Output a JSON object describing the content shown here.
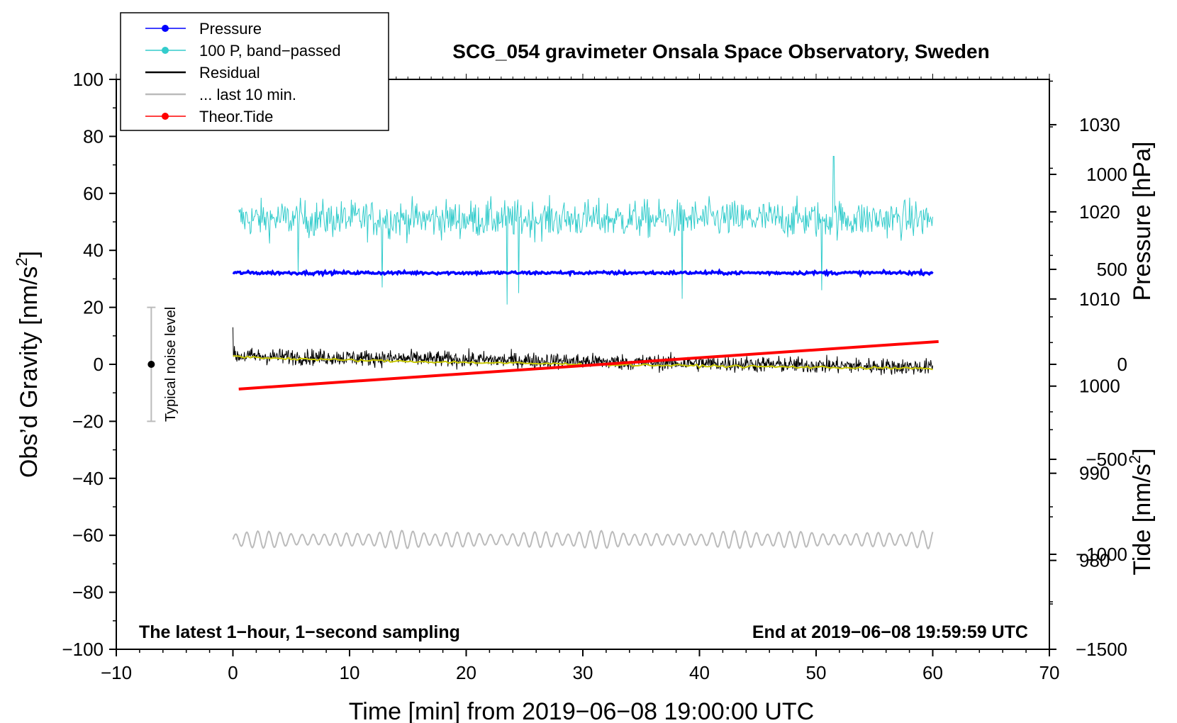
{
  "chart_data": {
    "type": "line",
    "title": "SCG_054 gravimeter Onsala Space Observatory, Sweden",
    "xlabel": "Time [min] from 2019−06−08 19:00:00 UTC",
    "ylabel_left": "Obs’d Gravity [nm/s",
    "ylabel_left_sup": "2",
    "ylabel_left_end": "]",
    "ylabel_right_top": "Pressure [hPa]",
    "ylabel_right_bottom": "Tide [nm/s",
    "ylabel_right_bottom_sup": "2",
    "ylabel_right_bottom_end": "]",
    "xlim": [
      -10,
      70
    ],
    "ylim": [
      -100,
      100
    ],
    "pressure_lim": [
      969.8,
      1035.2
    ],
    "tide_lim": [
      -1500,
      1500
    ],
    "x_ticks": [
      "−10",
      "0",
      "10",
      "20",
      "30",
      "40",
      "50",
      "60",
      "70"
    ],
    "x_tick_values": [
      -10,
      0,
      10,
      20,
      30,
      40,
      50,
      60,
      70
    ],
    "y_ticks": [
      "100",
      "80",
      "60",
      "40",
      "20",
      "0",
      "−20",
      "−40",
      "−60",
      "−80",
      "−100"
    ],
    "y_tick_values": [
      100,
      80,
      60,
      40,
      20,
      0,
      -20,
      -40,
      -60,
      -80,
      -100
    ],
    "pressure_ticks": [
      "1030",
      "1020",
      "1010",
      "1000",
      "990",
      "980"
    ],
    "pressure_tick_values": [
      1030,
      1020,
      1010,
      1000,
      990,
      980
    ],
    "tide_ticks": [
      "1000",
      "500",
      "0",
      "−500",
      "−1000",
      "−1500"
    ],
    "tide_tick_values": [
      1000,
      500,
      0,
      -500,
      -1000,
      -1500
    ],
    "annotation_left": "The latest 1−hour, 1−second sampling",
    "annotation_right": "End at 2019−06−08 19:59:59 UTC",
    "noise_label": "Typical noise level",
    "noise_bar": {
      "x": -7,
      "center": 0,
      "half_range": 20
    },
    "legend": [
      {
        "label": "Pressure",
        "color": "#0000ff",
        "marker": true
      },
      {
        "label": "100 P, band−passed",
        "color": "#33cccc",
        "marker": true
      },
      {
        "label": "Residual",
        "color": "#000000",
        "marker": false
      },
      {
        "label": "... last 10 min.",
        "color": "#bbbbbb",
        "marker": false
      },
      {
        "label": "Theor.Tide",
        "color": "#ff0000",
        "marker": true
      }
    ],
    "series": [
      {
        "name": "Pressure",
        "axis": "pressure",
        "color": "#0000ff",
        "x_range": [
          0,
          60
        ],
        "level": 1013,
        "noise": 0.35
      },
      {
        "name": "100 P, band−passed",
        "axis": "gravity",
        "color": "#33cccc",
        "x_range": [
          0.5,
          60
        ],
        "level": 51,
        "noise": 6.5,
        "spikes": [
          [
            23.5,
            21
          ],
          [
            24.5,
            25
          ],
          [
            38.5,
            23
          ],
          [
            51.5,
            73
          ],
          [
            50.5,
            26
          ],
          [
            12.8,
            27
          ],
          [
            5.6,
            32
          ]
        ]
      },
      {
        "name": "Residual",
        "axis": "gravity",
        "color": "#000000",
        "x_range": [
          0,
          60
        ],
        "start": 3,
        "end": -1,
        "noise": 2.8
      },
      {
        "name": "Residual smoothed",
        "axis": "gravity",
        "color": "#c8c800",
        "x_range": [
          0,
          60
        ],
        "start": 3,
        "end": -1.5
      },
      {
        "name": "... last 10 min.",
        "axis": "gravity",
        "color": "#bbbbbb",
        "x_range": [
          0,
          60
        ],
        "level": -61.5,
        "amplitude": 3.2
      },
      {
        "name": "Theor.Tide",
        "axis": "tide",
        "color": "#ff0000",
        "x": [
          0.5,
          60.5
        ],
        "values": [
          -130,
          120
        ]
      }
    ]
  }
}
